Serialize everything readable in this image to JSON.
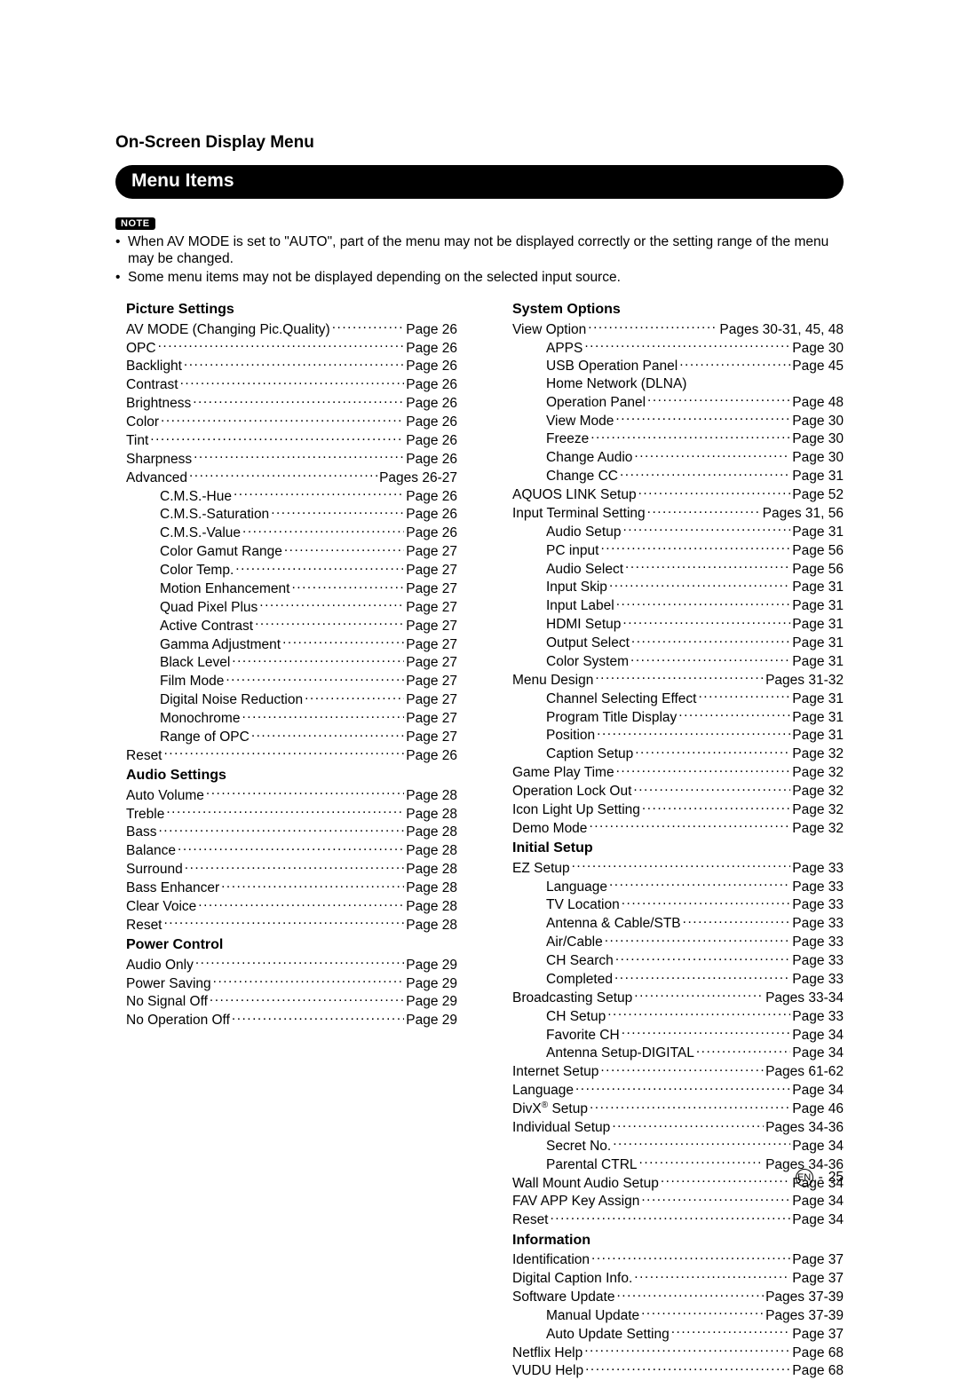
{
  "header": {
    "section_title": "On-Screen Display Menu",
    "banner": "Menu Items",
    "note_label": "NOTE",
    "notes": [
      "When AV MODE is set to \"AUTO\", part of the menu may not be displayed correctly or the setting range of the menu may be changed.",
      "Some menu items may not be displayed depending on the selected input source."
    ]
  },
  "footer": {
    "lang": "EN",
    "sep": "-",
    "page": "25"
  },
  "left": [
    {
      "type": "heading",
      "text": "Picture Settings"
    },
    {
      "indent": 0,
      "label": "AV MODE (Changing Pic.Quality)",
      "page": "Page 26"
    },
    {
      "indent": 0,
      "label": "OPC",
      "page": "Page 26"
    },
    {
      "indent": 0,
      "label": "Backlight",
      "page": "Page 26"
    },
    {
      "indent": 0,
      "label": "Contrast",
      "page": "Page 26"
    },
    {
      "indent": 0,
      "label": "Brightness",
      "page": "Page 26"
    },
    {
      "indent": 0,
      "label": "Color",
      "page": "Page 26"
    },
    {
      "indent": 0,
      "label": "Tint",
      "page": "Page 26"
    },
    {
      "indent": 0,
      "label": "Sharpness",
      "page": "Page 26"
    },
    {
      "indent": 0,
      "label": "Advanced",
      "page": "Pages 26-27"
    },
    {
      "indent": 1,
      "label": "C.M.S.-Hue",
      "page": "Page 26"
    },
    {
      "indent": 1,
      "label": "C.M.S.-Saturation",
      "page": "Page 26"
    },
    {
      "indent": 1,
      "label": "C.M.S.-Value",
      "page": "Page 26"
    },
    {
      "indent": 1,
      "label": "Color Gamut Range",
      "page": "Page 27"
    },
    {
      "indent": 1,
      "label": "Color Temp.",
      "page": "Page 27"
    },
    {
      "indent": 1,
      "label": "Motion Enhancement",
      "page": "Page 27"
    },
    {
      "indent": 1,
      "label": "Quad Pixel Plus",
      "page": "Page 27"
    },
    {
      "indent": 1,
      "label": "Active Contrast",
      "page": "Page 27"
    },
    {
      "indent": 1,
      "label": "Gamma Adjustment",
      "page": "Page 27"
    },
    {
      "indent": 1,
      "label": "Black Level",
      "page": "Page 27"
    },
    {
      "indent": 1,
      "label": "Film Mode",
      "page": "Page 27"
    },
    {
      "indent": 1,
      "label": "Digital Noise Reduction",
      "page": "Page 27"
    },
    {
      "indent": 1,
      "label": "Monochrome",
      "page": "Page 27"
    },
    {
      "indent": 1,
      "label": "Range of OPC",
      "page": "Page 27"
    },
    {
      "indent": 0,
      "label": "Reset",
      "page": "Page 26"
    },
    {
      "type": "heading",
      "text": "Audio Settings"
    },
    {
      "indent": 0,
      "label": "Auto Volume",
      "page": "Page 28"
    },
    {
      "indent": 0,
      "label": "Treble",
      "page": "Page 28"
    },
    {
      "indent": 0,
      "label": "Bass",
      "page": "Page 28"
    },
    {
      "indent": 0,
      "label": "Balance",
      "page": "Page 28"
    },
    {
      "indent": 0,
      "label": "Surround",
      "page": "Page 28"
    },
    {
      "indent": 0,
      "label": "Bass Enhancer",
      "page": "Page 28"
    },
    {
      "indent": 0,
      "label": "Clear Voice",
      "page": "Page 28"
    },
    {
      "indent": 0,
      "label": "Reset",
      "page": "Page 28"
    },
    {
      "type": "heading",
      "text": "Power Control"
    },
    {
      "indent": 0,
      "label": "Audio Only",
      "page": "Page 29"
    },
    {
      "indent": 0,
      "label": "Power Saving",
      "page": "Page 29"
    },
    {
      "indent": 0,
      "label": "No Signal Off",
      "page": "Page 29"
    },
    {
      "indent": 0,
      "label": "No Operation Off",
      "page": "Page 29"
    }
  ],
  "right": [
    {
      "type": "heading",
      "text": "System Options"
    },
    {
      "indent": 0,
      "label": "View Option",
      "page": "Pages 30-31, 45, 48"
    },
    {
      "indent": 1,
      "label": "APPS",
      "page": "Page 30"
    },
    {
      "indent": 1,
      "label": "USB Operation Panel",
      "page": "Page 45"
    },
    {
      "indent": 1,
      "label": "Home Network (DLNA)",
      "page": ""
    },
    {
      "indent": 1,
      "label": "Operation Panel",
      "page": "Page 48"
    },
    {
      "indent": 1,
      "label": "View Mode",
      "page": "Page 30"
    },
    {
      "indent": 1,
      "label": "Freeze",
      "page": "Page 30"
    },
    {
      "indent": 1,
      "label": "Change Audio",
      "page": "Page 30"
    },
    {
      "indent": 1,
      "label": "Change CC",
      "page": "Page 31"
    },
    {
      "indent": 0,
      "label": "AQUOS LINK Setup",
      "page": "Page 52"
    },
    {
      "indent": 0,
      "label": "Input Terminal Setting",
      "page": "Pages 31, 56"
    },
    {
      "indent": 1,
      "label": "Audio Setup",
      "page": "Page 31"
    },
    {
      "indent": 1,
      "label": "PC input",
      "page": "Page 56"
    },
    {
      "indent": 1,
      "label": "Audio Select",
      "page": "Page 56"
    },
    {
      "indent": 1,
      "label": "Input Skip",
      "page": "Page 31"
    },
    {
      "indent": 1,
      "label": "Input Label",
      "page": "Page 31"
    },
    {
      "indent": 1,
      "label": "HDMI Setup",
      "page": "Page 31"
    },
    {
      "indent": 1,
      "label": "Output Select",
      "page": "Page 31"
    },
    {
      "indent": 1,
      "label": "Color System",
      "page": "Page 31"
    },
    {
      "indent": 0,
      "label": "Menu Design",
      "page": "Pages 31-32"
    },
    {
      "indent": 1,
      "label": "Channel Selecting Effect",
      "page": "Page 31"
    },
    {
      "indent": 1,
      "label": "Program Title Display",
      "page": "Page 31"
    },
    {
      "indent": 1,
      "label": "Position",
      "page": "Page 31"
    },
    {
      "indent": 1,
      "label": "Caption Setup",
      "page": "Page 32"
    },
    {
      "indent": 0,
      "label": "Game Play Time",
      "page": "Page 32"
    },
    {
      "indent": 0,
      "label": "Operation Lock Out",
      "page": "Page 32"
    },
    {
      "indent": 0,
      "label": "Icon Light Up Setting",
      "page": "Page 32"
    },
    {
      "indent": 0,
      "label": "Demo Mode",
      "page": "Page 32"
    },
    {
      "type": "heading",
      "text": "Initial Setup"
    },
    {
      "indent": 0,
      "label": "EZ Setup",
      "page": "Page 33"
    },
    {
      "indent": 1,
      "label": "Language",
      "page": "Page 33"
    },
    {
      "indent": 1,
      "label": "TV Location",
      "page": "Page 33"
    },
    {
      "indent": 1,
      "label": "Antenna & Cable/STB",
      "page": "Page 33"
    },
    {
      "indent": 1,
      "label": "Air/Cable",
      "page": "Page 33"
    },
    {
      "indent": 1,
      "label": "CH Search",
      "page": "Page 33"
    },
    {
      "indent": 1,
      "label": "Completed",
      "page": "Page 33"
    },
    {
      "indent": 0,
      "label": "Broadcasting Setup",
      "page": "Pages 33-34"
    },
    {
      "indent": 1,
      "label": "CH Setup",
      "page": "Page 33"
    },
    {
      "indent": 1,
      "label": "Favorite CH",
      "page": "Page 34"
    },
    {
      "indent": 1,
      "label": "Antenna Setup-DIGITAL",
      "page": "Page 34"
    },
    {
      "indent": 0,
      "label": "Internet Setup",
      "page": "Pages 61-62"
    },
    {
      "indent": 0,
      "label": "Language",
      "page": "Page 34"
    },
    {
      "indent": 0,
      "label_html": "DivX<sup>®</sup> Setup",
      "page": "Page 46"
    },
    {
      "indent": 0,
      "label": "Individual Setup",
      "page": "Pages 34-36"
    },
    {
      "indent": 1,
      "label": "Secret No.",
      "page": "Page 34"
    },
    {
      "indent": 1,
      "label": "Parental CTRL",
      "page": "Pages 34-36"
    },
    {
      "indent": 0,
      "label": "Wall Mount Audio Setup",
      "page": "Page 34"
    },
    {
      "indent": 0,
      "label": "FAV APP Key Assign",
      "page": "Page 34"
    },
    {
      "indent": 0,
      "label": "Reset",
      "page": "Page 34"
    },
    {
      "type": "heading",
      "text": "Information"
    },
    {
      "indent": 0,
      "label": "Identification",
      "page": "Page 37"
    },
    {
      "indent": 0,
      "label": "Digital Caption Info.",
      "page": "Page 37"
    },
    {
      "indent": 0,
      "label": "Software Update",
      "page": "Pages 37-39"
    },
    {
      "indent": 1,
      "label": "Manual Update",
      "page": "Pages 37-39"
    },
    {
      "indent": 1,
      "label": "Auto Update Setting",
      "page": "Page 37"
    },
    {
      "indent": 0,
      "label": "Netflix Help",
      "page": "Page 68"
    },
    {
      "indent": 0,
      "label": "VUDU Help",
      "page": "Page 68"
    }
  ]
}
